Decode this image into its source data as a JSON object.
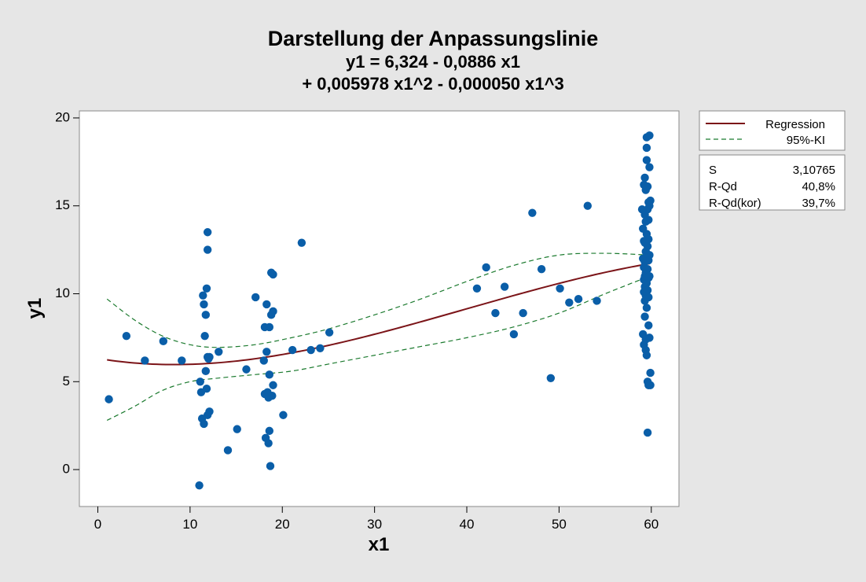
{
  "chart_data": {
    "type": "scatter",
    "title": "Darstellung der Anpassungslinie",
    "subtitle_lines": [
      "y1 = 6,324 - 0,0886 x1",
      "+ 0,005978 x1^2 - 0,000050 x1^3"
    ],
    "xlabel": "x1",
    "ylabel": "y1",
    "xlim": [
      -2,
      63
    ],
    "ylim": [
      -2.1,
      20.4
    ],
    "xticks": [
      0,
      10,
      20,
      30,
      40,
      50,
      60
    ],
    "yticks": [
      0,
      5,
      10,
      15,
      20
    ],
    "grid": false,
    "colors": {
      "points": "#0a5ea8",
      "regression": "#7b1418",
      "ci": "#1b7a2e",
      "plot_bg": "#ffffff",
      "page_bg": "#e6e6e6"
    },
    "points": [
      [
        1.2,
        4.0
      ],
      [
        3.1,
        7.6
      ],
      [
        5.1,
        6.2
      ],
      [
        7.1,
        7.3
      ],
      [
        9.1,
        6.2
      ],
      [
        11.0,
        -0.9
      ],
      [
        11.1,
        5.0
      ],
      [
        11.2,
        4.4
      ],
      [
        11.3,
        2.9
      ],
      [
        11.4,
        9.9
      ],
      [
        11.5,
        9.4
      ],
      [
        11.5,
        2.6
      ],
      [
        11.6,
        7.6
      ],
      [
        11.7,
        8.8
      ],
      [
        11.7,
        5.6
      ],
      [
        11.8,
        10.3
      ],
      [
        11.8,
        4.6
      ],
      [
        11.9,
        6.4
      ],
      [
        11.9,
        3.1
      ],
      [
        11.9,
        12.5
      ],
      [
        11.9,
        13.5
      ],
      [
        12.0,
        6.3
      ],
      [
        12.1,
        6.4
      ],
      [
        12.1,
        3.3
      ],
      [
        13.1,
        6.7
      ],
      [
        14.1,
        1.1
      ],
      [
        15.1,
        2.3
      ],
      [
        16.1,
        5.7
      ],
      [
        17.1,
        9.8
      ],
      [
        18.0,
        6.2
      ],
      [
        18.1,
        4.3
      ],
      [
        18.1,
        8.1
      ],
      [
        18.2,
        1.8
      ],
      [
        18.3,
        6.7
      ],
      [
        18.3,
        9.4
      ],
      [
        18.4,
        4.4
      ],
      [
        18.5,
        4.1
      ],
      [
        18.5,
        1.5
      ],
      [
        18.6,
        8.1
      ],
      [
        18.6,
        5.4
      ],
      [
        18.6,
        2.2
      ],
      [
        18.7,
        0.2
      ],
      [
        18.8,
        8.8
      ],
      [
        18.8,
        11.2
      ],
      [
        18.9,
        4.2
      ],
      [
        19.0,
        9.0
      ],
      [
        19.0,
        11.1
      ],
      [
        19.0,
        4.8
      ],
      [
        20.1,
        3.1
      ],
      [
        21.1,
        6.8
      ],
      [
        22.1,
        12.9
      ],
      [
        23.1,
        6.8
      ],
      [
        24.1,
        6.9
      ],
      [
        25.1,
        7.8
      ],
      [
        41.1,
        10.3
      ],
      [
        42.1,
        11.5
      ],
      [
        43.1,
        8.9
      ],
      [
        44.1,
        10.4
      ],
      [
        45.1,
        7.7
      ],
      [
        46.1,
        8.9
      ],
      [
        47.1,
        14.6
      ],
      [
        48.1,
        11.4
      ],
      [
        49.1,
        5.2
      ],
      [
        50.1,
        10.3
      ],
      [
        51.1,
        9.5
      ],
      [
        52.1,
        9.7
      ],
      [
        53.1,
        15.0
      ],
      [
        54.1,
        9.6
      ],
      [
        59.0,
        14.8
      ],
      [
        59.1,
        13.7
      ],
      [
        59.1,
        12.0
      ],
      [
        59.1,
        7.7
      ],
      [
        59.2,
        16.2
      ],
      [
        59.2,
        13.0
      ],
      [
        59.2,
        11.5
      ],
      [
        59.2,
        10.8
      ],
      [
        59.2,
        10.1
      ],
      [
        59.2,
        7.1
      ],
      [
        59.3,
        16.6
      ],
      [
        59.3,
        14.5
      ],
      [
        59.3,
        12.9
      ],
      [
        59.3,
        11.8
      ],
      [
        59.3,
        11.0
      ],
      [
        59.3,
        10.4
      ],
      [
        59.3,
        9.6
      ],
      [
        59.3,
        8.7
      ],
      [
        59.4,
        15.9
      ],
      [
        59.4,
        14.1
      ],
      [
        59.4,
        12.4
      ],
      [
        59.4,
        11.2
      ],
      [
        59.4,
        9.9
      ],
      [
        59.4,
        7.4
      ],
      [
        59.4,
        6.8
      ],
      [
        59.5,
        18.9
      ],
      [
        59.5,
        18.3
      ],
      [
        59.5,
        17.6
      ],
      [
        59.5,
        13.4
      ],
      [
        59.5,
        12.1
      ],
      [
        59.5,
        10.6
      ],
      [
        59.5,
        9.2
      ],
      [
        59.5,
        6.5
      ],
      [
        59.6,
        16.1
      ],
      [
        59.6,
        14.8
      ],
      [
        59.6,
        12.7
      ],
      [
        59.6,
        11.4
      ],
      [
        59.6,
        10.2
      ],
      [
        59.6,
        5.0
      ],
      [
        59.6,
        2.1
      ],
      [
        59.7,
        15.2
      ],
      [
        59.7,
        14.2
      ],
      [
        59.7,
        13.1
      ],
      [
        59.7,
        11.9
      ],
      [
        59.7,
        10.9
      ],
      [
        59.7,
        9.8
      ],
      [
        59.7,
        8.2
      ],
      [
        59.7,
        4.8
      ],
      [
        59.8,
        19.0
      ],
      [
        59.8,
        17.2
      ],
      [
        59.8,
        15.0
      ],
      [
        59.8,
        12.2
      ],
      [
        59.8,
        11.0
      ],
      [
        59.8,
        7.5
      ],
      [
        59.9,
        15.3
      ],
      [
        59.9,
        5.5
      ],
      [
        59.9,
        4.8
      ]
    ],
    "regression": {
      "name": "Regression",
      "coefficients": [
        6.324,
        -0.0886,
        0.005978,
        -5e-05
      ],
      "x_range": [
        1,
        59.8
      ]
    },
    "ci95": {
      "name": "95%-KI",
      "upper": [
        [
          1,
          9.7
        ],
        [
          4,
          8.5
        ],
        [
          7,
          7.6
        ],
        [
          10,
          7.1
        ],
        [
          13,
          6.95
        ],
        [
          17,
          7.1
        ],
        [
          21,
          7.5
        ],
        [
          25,
          8.0
        ],
        [
          30,
          8.8
        ],
        [
          35,
          9.7
        ],
        [
          40,
          10.7
        ],
        [
          45,
          11.6
        ],
        [
          50,
          12.2
        ],
        [
          55,
          12.3
        ],
        [
          59.8,
          12.2
        ]
      ],
      "lower": [
        [
          1,
          2.8
        ],
        [
          4,
          3.6
        ],
        [
          7,
          4.5
        ],
        [
          10,
          5.0
        ],
        [
          13,
          5.2
        ],
        [
          17,
          5.4
        ],
        [
          21,
          5.6
        ],
        [
          25,
          6.0
        ],
        [
          30,
          6.5
        ],
        [
          35,
          7.0
        ],
        [
          40,
          7.5
        ],
        [
          45,
          8.1
        ],
        [
          50,
          8.9
        ],
        [
          55,
          10.0
        ],
        [
          59.8,
          11.0
        ]
      ]
    },
    "legend": {
      "placement": "right",
      "items": [
        {
          "label": "Regression",
          "style": "solid"
        },
        {
          "label": "95%-KI",
          "style": "dashed"
        }
      ]
    },
    "stats": [
      {
        "label": "S",
        "value": "3,10765"
      },
      {
        "label": "R-Qd",
        "value": "40,8%"
      },
      {
        "label": "R-Qd(kor)",
        "value": "39,7%"
      }
    ]
  }
}
